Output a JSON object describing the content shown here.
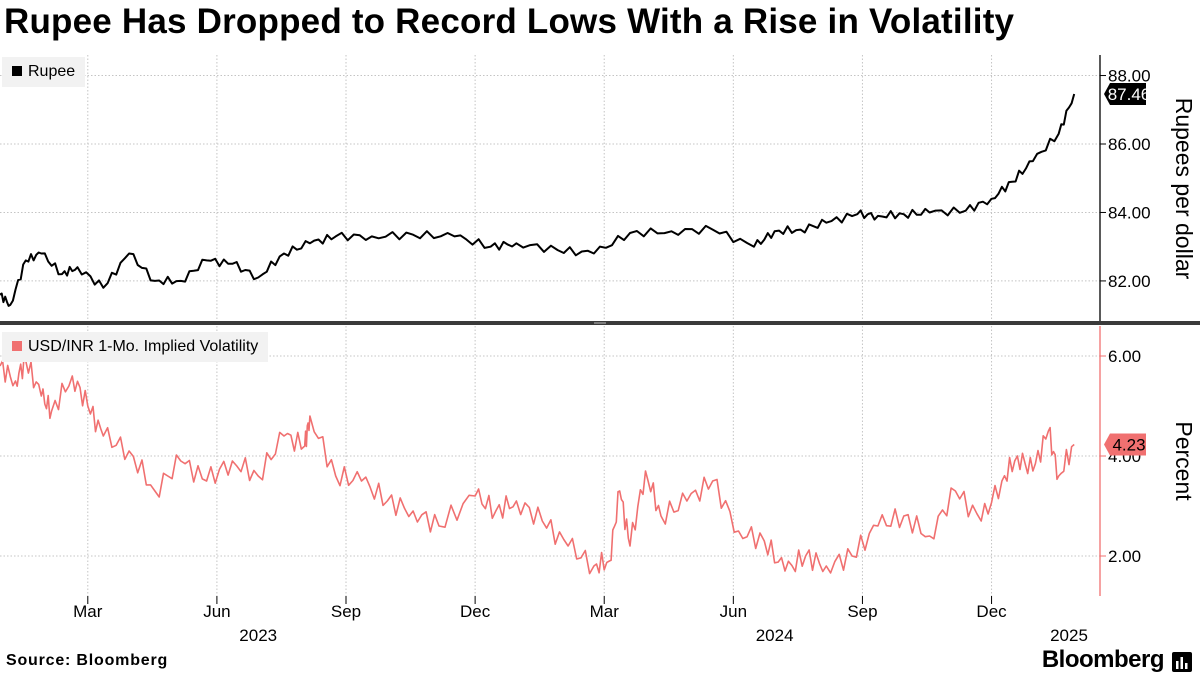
{
  "title": "Rupee Has Dropped to Record Lows With a Rise in Volatility",
  "source": "Source: Bloomberg",
  "brand": "Bloomberg",
  "brand_icon": "bloomberg-terminal-icon",
  "colors": {
    "rupee": "#000000",
    "volatility": "#f07070",
    "grid": "#bdbdbd"
  },
  "chart_data": [
    {
      "type": "line",
      "series_name": "Rupee",
      "ylabel": "Rupees per dollar",
      "ylim": [
        80.8,
        88.6
      ],
      "yticks": [
        82,
        84,
        86,
        88
      ],
      "ytick_labels": [
        "82.00",
        "84.00",
        "86.00",
        "88.00"
      ],
      "last_value": 87.46,
      "last_label": "87.46",
      "x": [
        2023.0,
        2023.02,
        2023.05,
        2023.08,
        2023.12,
        2023.15,
        2023.2,
        2023.25,
        2023.3,
        2023.35,
        2023.4,
        2023.45,
        2023.5,
        2023.55,
        2023.6,
        2023.65,
        2023.72,
        2023.8,
        2023.88,
        2023.95,
        2024.0,
        2024.08,
        2024.15,
        2024.22,
        2024.3,
        2024.38,
        2024.46,
        2024.5,
        2024.55,
        2024.6,
        2024.66,
        2024.7,
        2024.75,
        2024.8,
        2024.87,
        2024.92,
        2024.96,
        2025.0,
        2025.05,
        2025.08
      ],
      "values": [
        81.6,
        81.3,
        82.6,
        82.8,
        82.2,
        82.4,
        81.8,
        82.8,
        82.0,
        82.0,
        82.6,
        82.5,
        82.1,
        82.8,
        83.1,
        83.3,
        83.3,
        83.35,
        83.3,
        83.0,
        83.1,
        82.9,
        82.8,
        83.4,
        83.45,
        83.5,
        83.0,
        83.45,
        83.5,
        83.7,
        83.95,
        83.9,
        83.95,
        84.0,
        84.05,
        84.4,
        84.9,
        85.5,
        86.3,
        87.46
      ]
    },
    {
      "type": "line",
      "series_name": "USD/INR 1-Mo. Implied Volatility",
      "ylabel": "Percent",
      "ylim": [
        1.2,
        6.6
      ],
      "yticks": [
        2,
        4,
        6
      ],
      "ytick_labels": [
        "2.00",
        "4.00",
        "6.00"
      ],
      "last_value": 4.23,
      "last_label": "4.23",
      "x": [
        2023.0,
        2023.03,
        2023.05,
        2023.08,
        2023.1,
        2023.14,
        2023.17,
        2023.2,
        2023.25,
        2023.3,
        2023.35,
        2023.4,
        2023.45,
        2023.5,
        2023.55,
        2023.59,
        2023.6,
        2023.65,
        2023.7,
        2023.75,
        2023.8,
        2023.85,
        2023.92,
        2023.96,
        2024.0,
        2024.05,
        2024.1,
        2024.15,
        2024.18,
        2024.2,
        2024.22,
        2024.25,
        2024.28,
        2024.33,
        2024.38,
        2024.43,
        2024.48,
        2024.52,
        2024.56,
        2024.6,
        2024.65,
        2024.7,
        2024.75,
        2024.8,
        2024.85,
        2024.9,
        2024.94,
        2024.97,
        2025.0,
        2025.03,
        2025.05,
        2025.08
      ],
      "values": [
        5.8,
        5.5,
        5.9,
        5.2,
        4.9,
        5.6,
        5.0,
        4.4,
        4.1,
        3.3,
        3.9,
        3.5,
        3.9,
        3.6,
        4.4,
        4.2,
        4.8,
        3.6,
        3.5,
        3.1,
        2.9,
        2.6,
        3.2,
        2.9,
        3.1,
        2.7,
        2.2,
        1.8,
        1.9,
        3.3,
        2.2,
        3.7,
        2.8,
        3.1,
        3.5,
        2.5,
        2.3,
        1.7,
        2.0,
        1.8,
        2.0,
        2.6,
        2.8,
        2.4,
        3.3,
        2.7,
        3.5,
        4.0,
        3.7,
        4.5,
        3.6,
        4.23
      ]
    }
  ],
  "x_axis": {
    "month_ticks": [
      {
        "x": 2023.17,
        "label": "Mar"
      },
      {
        "x": 2023.42,
        "label": "Jun"
      },
      {
        "x": 2023.67,
        "label": "Sep"
      },
      {
        "x": 2023.92,
        "label": "Dec"
      },
      {
        "x": 2024.17,
        "label": "Mar"
      },
      {
        "x": 2024.42,
        "label": "Jun"
      },
      {
        "x": 2024.67,
        "label": "Sep"
      },
      {
        "x": 2024.92,
        "label": "Dec"
      }
    ],
    "year_labels": [
      {
        "x": 2023.5,
        "label": "2023"
      },
      {
        "x": 2024.5,
        "label": "2024"
      },
      {
        "x": 2025.07,
        "label": "2025"
      }
    ],
    "xlim": [
      2023.0,
      2025.13
    ]
  }
}
